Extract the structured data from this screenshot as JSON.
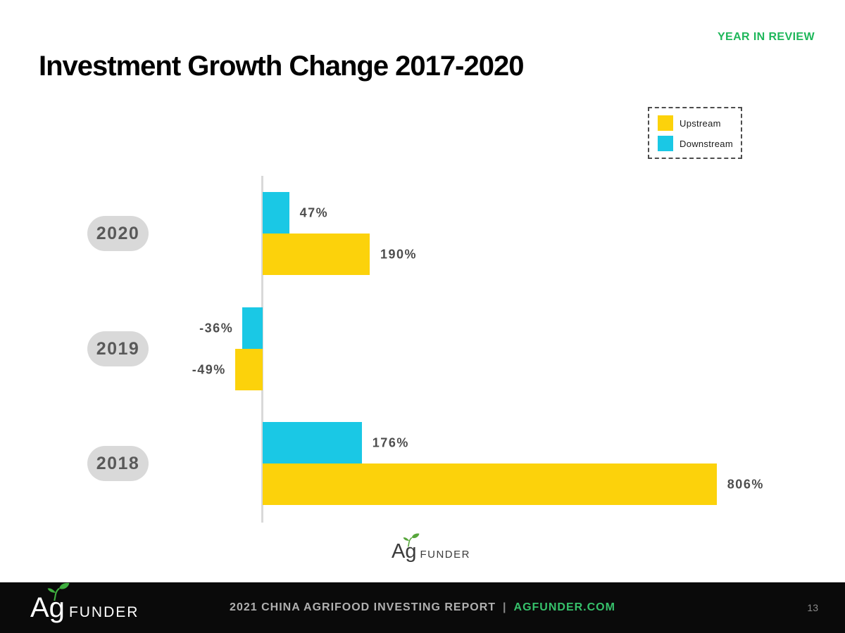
{
  "page": {
    "eyebrow": "YEAR IN REVIEW",
    "title": "Investment Growth Change 2017-2020",
    "page_number": "13"
  },
  "colors": {
    "upstream_yellow": "#fcd20b",
    "downstream_cyan": "#1ac8e5",
    "accent_green": "#1eb75a",
    "footer_link_green": "#36c16b",
    "pill_gray": "#d9d9d9",
    "axis_gray": "#d9d9d9",
    "footer_bg": "#0a0a0a"
  },
  "legend": {
    "items": [
      {
        "label": "Upstream",
        "color": "#fcd20b"
      },
      {
        "label": "Downstream",
        "color": "#1ac8e5"
      }
    ]
  },
  "chart_data": {
    "type": "bar",
    "orientation": "horizontal",
    "title": "Investment Growth Change 2017-2020",
    "xlabel": "",
    "ylabel": "",
    "unit": "%",
    "grid": false,
    "legend_position": "top-right",
    "xlim": [
      -100,
      900
    ],
    "categories": [
      "2020",
      "2019",
      "2018"
    ],
    "series": [
      {
        "name": "Downstream",
        "color": "#1ac8e5",
        "values": [
          47,
          -36,
          176
        ],
        "labels": [
          "47%",
          "-36%",
          "176%"
        ]
      },
      {
        "name": "Upstream",
        "color": "#fcd20b",
        "values": [
          190,
          -49,
          806
        ],
        "labels": [
          "190%",
          "-49%",
          "806%"
        ]
      }
    ]
  },
  "brand": {
    "ag": "Ag",
    "funder": "FUNDER"
  },
  "footer": {
    "report_text": "2021 CHINA AGRIFOOD INVESTING REPORT",
    "separator": "|",
    "link_text": "AGFUNDER.COM"
  }
}
